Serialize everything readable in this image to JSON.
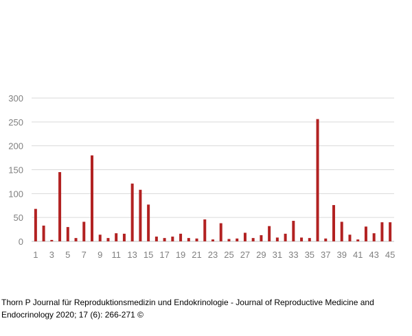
{
  "chart_data": {
    "type": "bar",
    "categories": [
      "1",
      "2",
      "3",
      "4",
      "5",
      "6",
      "7",
      "8",
      "9",
      "10",
      "11",
      "12",
      "13",
      "14",
      "15",
      "16",
      "17",
      "18",
      "19",
      "20",
      "21",
      "22",
      "23",
      "24",
      "25",
      "26",
      "27",
      "28",
      "29",
      "30",
      "31",
      "32",
      "33",
      "34",
      "35",
      "36",
      "37",
      "38",
      "39",
      "40",
      "41",
      "42",
      "43",
      "44",
      "45"
    ],
    "x_tick_labels": [
      "1",
      "3",
      "5",
      "7",
      "9",
      "11",
      "13",
      "15",
      "17",
      "19",
      "21",
      "23",
      "25",
      "27",
      "29",
      "31",
      "33",
      "35",
      "37",
      "39",
      "41",
      "43",
      "45"
    ],
    "values": [
      68,
      33,
      3,
      145,
      30,
      7,
      41,
      180,
      14,
      7,
      17,
      16,
      121,
      108,
      77,
      10,
      7,
      10,
      16,
      7,
      6,
      46,
      4,
      38,
      5,
      6,
      18,
      7,
      13,
      32,
      8,
      16,
      43,
      8,
      7,
      256,
      6,
      76,
      41,
      14,
      4,
      31,
      17,
      40,
      40
    ],
    "y_ticks": [
      0,
      50,
      100,
      150,
      200,
      250,
      300
    ],
    "ylim": [
      0,
      300
    ],
    "grid": true,
    "legend": "none",
    "bar_color": "#b22222"
  },
  "caption": "Thorn P Journal für Reproduktionsmedizin und Endokrinologie - Journal of Reproductive Medicine and Endocrinology 2020; 17 (6): 266-271 ©"
}
